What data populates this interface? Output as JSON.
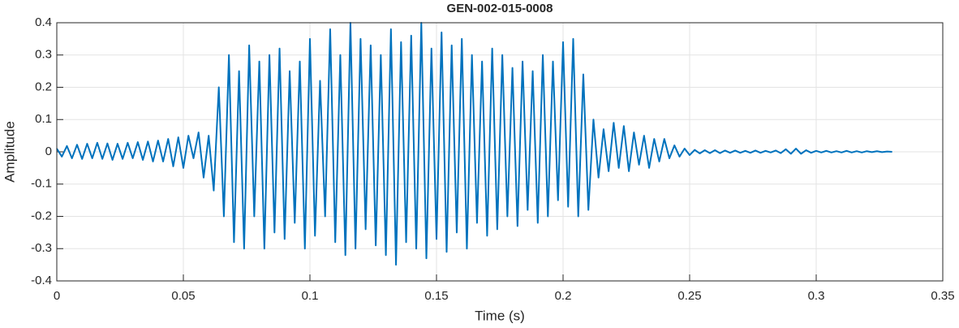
{
  "chart_data": {
    "type": "line",
    "title": "GEN-002-015-0008",
    "xlabel": "Time (s)",
    "ylabel": "Amplitude",
    "x": [
      0,
      0.002,
      0.004,
      0.006,
      0.008,
      0.01,
      0.012,
      0.014,
      0.016,
      0.018,
      0.02,
      0.022,
      0.024,
      0.026,
      0.028,
      0.03,
      0.032,
      0.034,
      0.036,
      0.038,
      0.04,
      0.042,
      0.044,
      0.046,
      0.048,
      0.05,
      0.052,
      0.054,
      0.056,
      0.058,
      0.06,
      0.062,
      0.064,
      0.066,
      0.068,
      0.07,
      0.072,
      0.074,
      0.076,
      0.078,
      0.08,
      0.082,
      0.084,
      0.086,
      0.088,
      0.09,
      0.092,
      0.094,
      0.096,
      0.098,
      0.1,
      0.102,
      0.104,
      0.106,
      0.108,
      0.11,
      0.112,
      0.114,
      0.116,
      0.118,
      0.12,
      0.122,
      0.124,
      0.126,
      0.128,
      0.13,
      0.132,
      0.134,
      0.136,
      0.138,
      0.14,
      0.142,
      0.144,
      0.146,
      0.148,
      0.15,
      0.152,
      0.154,
      0.156,
      0.158,
      0.16,
      0.162,
      0.164,
      0.166,
      0.168,
      0.17,
      0.172,
      0.174,
      0.176,
      0.178,
      0.18,
      0.182,
      0.184,
      0.186,
      0.188,
      0.19,
      0.192,
      0.194,
      0.196,
      0.198,
      0.2,
      0.202,
      0.204,
      0.206,
      0.208,
      0.21,
      0.212,
      0.214,
      0.216,
      0.218,
      0.22,
      0.222,
      0.224,
      0.226,
      0.228,
      0.23,
      0.232,
      0.234,
      0.236,
      0.238,
      0.24,
      0.242,
      0.244,
      0.246,
      0.248,
      0.25,
      0.252,
      0.254,
      0.256,
      0.258,
      0.26,
      0.262,
      0.264,
      0.266,
      0.268,
      0.27,
      0.272,
      0.274,
      0.276,
      0.278,
      0.28,
      0.282,
      0.284,
      0.286,
      0.288,
      0.29,
      0.292,
      0.294,
      0.296,
      0.298,
      0.3,
      0.302,
      0.304,
      0.306,
      0.308,
      0.31,
      0.312,
      0.314,
      0.316,
      0.318,
      0.32,
      0.322,
      0.324,
      0.326,
      0.328,
      0.33
    ],
    "series": [
      {
        "color": "#0072bd",
        "values": [
          0.01,
          -0.015,
          0.018,
          -0.02,
          0.022,
          -0.022,
          0.025,
          -0.02,
          0.028,
          -0.022,
          0.026,
          -0.025,
          0.025,
          -0.022,
          0.028,
          -0.02,
          0.03,
          -0.025,
          0.032,
          -0.03,
          0.035,
          -0.03,
          0.04,
          -0.045,
          0.045,
          -0.05,
          0.05,
          -0.02,
          0.06,
          -0.08,
          0.05,
          -0.12,
          0.2,
          -0.2,
          0.3,
          -0.28,
          0.25,
          -0.3,
          0.33,
          -0.2,
          0.28,
          -0.3,
          0.3,
          -0.25,
          0.32,
          -0.27,
          0.25,
          -0.22,
          0.28,
          -0.3,
          0.35,
          -0.26,
          0.22,
          -0.2,
          0.38,
          -0.28,
          0.3,
          -0.32,
          0.4,
          -0.3,
          0.35,
          -0.24,
          0.33,
          -0.29,
          0.3,
          -0.32,
          0.38,
          -0.35,
          0.34,
          -0.28,
          0.36,
          -0.3,
          0.4,
          -0.33,
          0.32,
          -0.27,
          0.37,
          -0.31,
          0.33,
          -0.25,
          0.35,
          -0.3,
          0.3,
          -0.22,
          0.28,
          -0.26,
          0.32,
          -0.24,
          0.3,
          -0.2,
          0.26,
          -0.23,
          0.28,
          -0.18,
          0.25,
          -0.22,
          0.3,
          -0.2,
          0.28,
          -0.15,
          0.34,
          -0.17,
          0.35,
          -0.2,
          0.24,
          -0.18,
          0.1,
          -0.08,
          0.07,
          -0.06,
          0.09,
          -0.05,
          0.08,
          -0.06,
          0.06,
          -0.04,
          0.05,
          -0.05,
          0.04,
          -0.03,
          0.04,
          -0.02,
          0.02,
          -0.015,
          0.01,
          -0.01,
          0.006,
          -0.005,
          0.005,
          -0.004,
          0.005,
          -0.004,
          0.004,
          -0.003,
          0.004,
          -0.003,
          0.003,
          -0.003,
          0.004,
          -0.003,
          0.003,
          -0.002,
          0.004,
          -0.004,
          0.008,
          -0.006,
          0.01,
          -0.006,
          0.005,
          -0.003,
          0.003,
          -0.002,
          0.003,
          -0.002,
          0.002,
          -0.002,
          0.003,
          -0.002,
          0.002,
          -0.002,
          0.002,
          -0.001,
          0.002,
          -0.001,
          0.001,
          0
        ]
      }
    ],
    "xlim": [
      0,
      0.35
    ],
    "xticks": [
      0,
      0.05,
      0.1,
      0.15,
      0.2,
      0.25,
      0.3,
      0.35
    ],
    "ylim": [
      -0.4,
      0.4
    ],
    "yticks": [
      -0.4,
      -0.3,
      -0.2,
      -0.1,
      0,
      0.1,
      0.2,
      0.3,
      0.4
    ],
    "grid": true
  }
}
